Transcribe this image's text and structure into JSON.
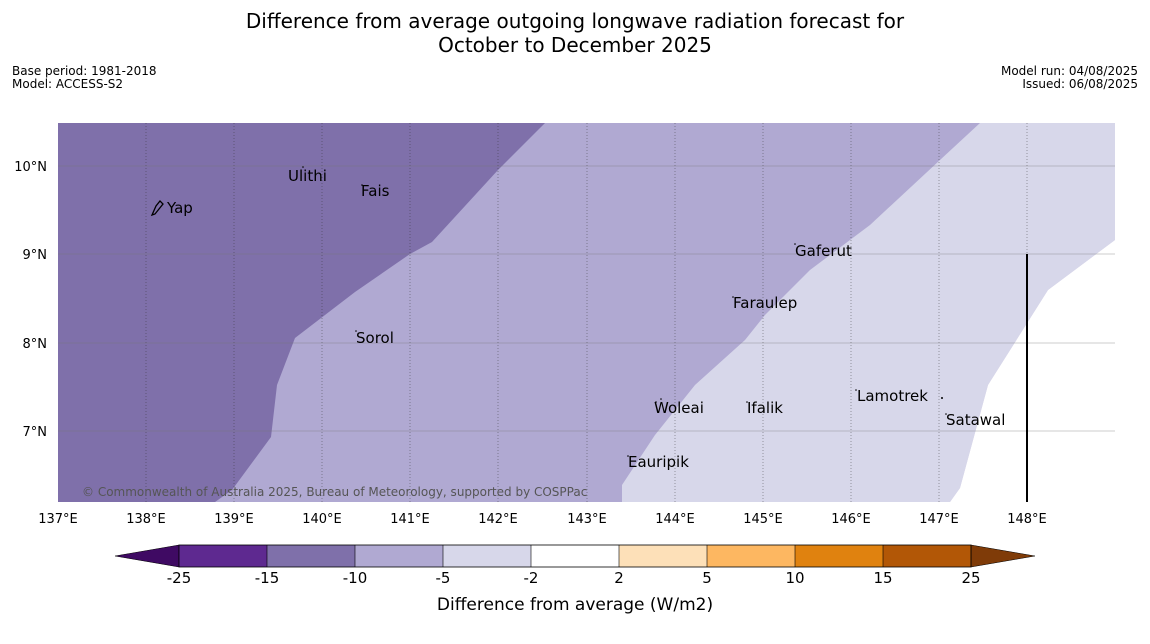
{
  "title": {
    "line1": "Difference from average outgoing longwave radiation forecast for",
    "line2": "October to December 2025"
  },
  "meta": {
    "base_period": "Base period: 1981-2018",
    "model": "Model: ACCESS-S2",
    "model_run": "Model run: 04/08/2025",
    "issued": "Issued: 06/08/2025"
  },
  "axes": {
    "x_ticks": [
      "137°E",
      "138°E",
      "139°E",
      "140°E",
      "141°E",
      "142°E",
      "143°E",
      "144°E",
      "145°E",
      "146°E",
      "147°E",
      "148°E"
    ],
    "y_ticks": [
      "10°N",
      "9°N",
      "8°N",
      "7°N"
    ]
  },
  "places": [
    {
      "name": "Yap"
    },
    {
      "name": "Ulithi"
    },
    {
      "name": "Fais"
    },
    {
      "name": "Gaferut"
    },
    {
      "name": "Faraulep"
    },
    {
      "name": "Sorol"
    },
    {
      "name": "Woleai"
    },
    {
      "name": "Ifalik"
    },
    {
      "name": "Lamotrek"
    },
    {
      "name": "Satawal"
    },
    {
      "name": "Eauripik"
    }
  ],
  "copyright": "© Commonwealth of Australia 2025, Bureau of Meteorology, supported by COSPPac",
  "colorbar": {
    "title": "Difference from average (W/m2)",
    "ticks": [
      "-25",
      "-15",
      "-10",
      "-5",
      "-2",
      "2",
      "5",
      "10",
      "15",
      "25"
    ],
    "colors": [
      "#3f0a63",
      "#5e2990",
      "#7f70aa",
      "#b0a9d2",
      "#d7d7ea",
      "#ffffff",
      "#fde0b8",
      "#fdb761",
      "#e0820f",
      "#b25706",
      "#7f3b08"
    ]
  },
  "map_colors": {
    "band_minus_10_to_minus_15": "#7f70aa",
    "band_minus_5_to_minus_10": "#b0a9d2",
    "band_minus_2_to_minus_5": "#d7d7ea",
    "band_neutral": "#ffffff"
  }
}
